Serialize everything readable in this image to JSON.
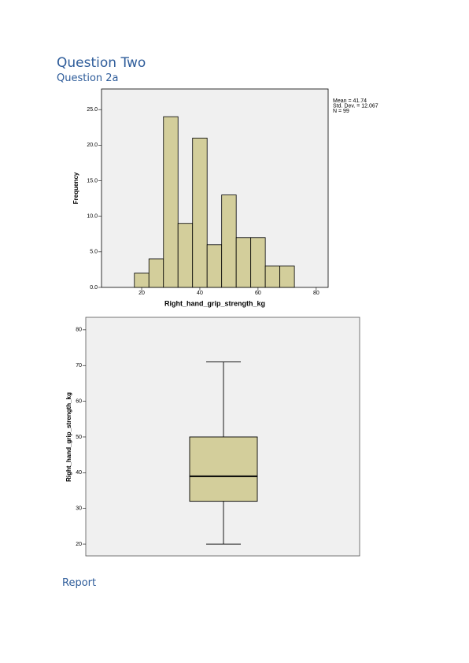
{
  "header": {
    "title": "Question Two",
    "subtitle": "Question 2a"
  },
  "footer": {
    "text": "Report"
  },
  "chart_data": [
    {
      "type": "histogram",
      "xlabel": "Right_hand_grip_strength_kg",
      "ylabel": "Frequency",
      "bins": [
        17.5,
        22.5,
        27.5,
        32.5,
        37.5,
        42.5,
        47.5,
        52.5,
        57.5,
        62.5,
        67.5,
        72.5
      ],
      "values": [
        2,
        4,
        24,
        9,
        21,
        6,
        13,
        7,
        7,
        3,
        3
      ],
      "color": "#d3ce9b",
      "xlim": [
        6.2,
        84.1
      ],
      "xticks": [
        20,
        40,
        60,
        80
      ],
      "ylim": [
        0,
        27.9
      ],
      "yticks": [
        {
          "value": 0,
          "label": "0.0"
        },
        {
          "value": 5,
          "label": "5.0"
        },
        {
          "value": 10,
          "label": "10.0"
        },
        {
          "value": 15,
          "label": "15.0"
        },
        {
          "value": 20,
          "label": "20.0"
        },
        {
          "value": 25,
          "label": "25.0"
        }
      ],
      "stats": [
        "Mean = 41.74",
        "Std. Dev. = 12.067",
        "N = 99"
      ]
    },
    {
      "type": "box",
      "ylabel": "Right_hand_grip_strength_kg",
      "min": 20,
      "q1": 32,
      "median": 39,
      "q3": 50,
      "max": 71,
      "color": "#d3ce9b",
      "ylim": [
        16.7,
        83.5
      ],
      "yticks": [
        20,
        30,
        40,
        50,
        60,
        70,
        80
      ]
    }
  ]
}
